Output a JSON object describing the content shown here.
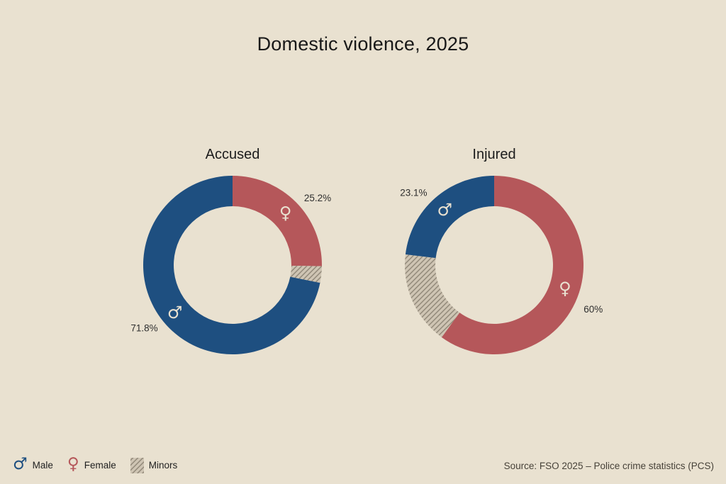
{
  "page": {
    "title": "Domestic violence, 2025",
    "source_note": "Source: FSO 2025 – Police crime statistics (PCS)"
  },
  "colors": {
    "background": "#e9e1d0",
    "male": "#1e4f80",
    "female": "#b5575a",
    "minors_bg": "#cfc5b4",
    "minors_line": "#8a8172",
    "title_text": "#181818",
    "pct_label_text": "#2e2e2e",
    "source_text": "#474239"
  },
  "legend": {
    "position": "bottom-left",
    "items": [
      {
        "id": "male",
        "symbol": "♂",
        "label": "Male",
        "color": "#1e4f80"
      },
      {
        "id": "female",
        "symbol": "♀",
        "label": "Female",
        "color": "#b5575a"
      },
      {
        "id": "minors",
        "symbol": "hatched-square",
        "label": "Minors",
        "color": "#cfc5b4"
      }
    ]
  },
  "chart_data": [
    {
      "type": "pie",
      "variant": "donut",
      "title": "Accused",
      "unit": "%",
      "start_angle": "top",
      "direction": "clockwise",
      "slices": [
        {
          "name": "Female",
          "value": 25.2,
          "label": "25.2%",
          "color_key": "female",
          "symbol": "♀"
        },
        {
          "name": "Minors",
          "value": 3.0,
          "label": "",
          "color_key": "minors",
          "symbol": ""
        },
        {
          "name": "Male",
          "value": 71.8,
          "label": "71.8%",
          "color_key": "male",
          "symbol": "♂"
        }
      ]
    },
    {
      "type": "pie",
      "variant": "donut",
      "title": "Injured",
      "unit": "%",
      "start_angle": "top",
      "direction": "clockwise",
      "slices": [
        {
          "name": "Female",
          "value": 60,
          "label": "60%",
          "color_key": "female",
          "symbol": "♀"
        },
        {
          "name": "Minors",
          "value": 16.9,
          "label": "",
          "color_key": "minors",
          "symbol": ""
        },
        {
          "name": "Male",
          "value": 23.1,
          "label": "23.1%",
          "color_key": "male",
          "symbol": "♂"
        }
      ]
    }
  ]
}
